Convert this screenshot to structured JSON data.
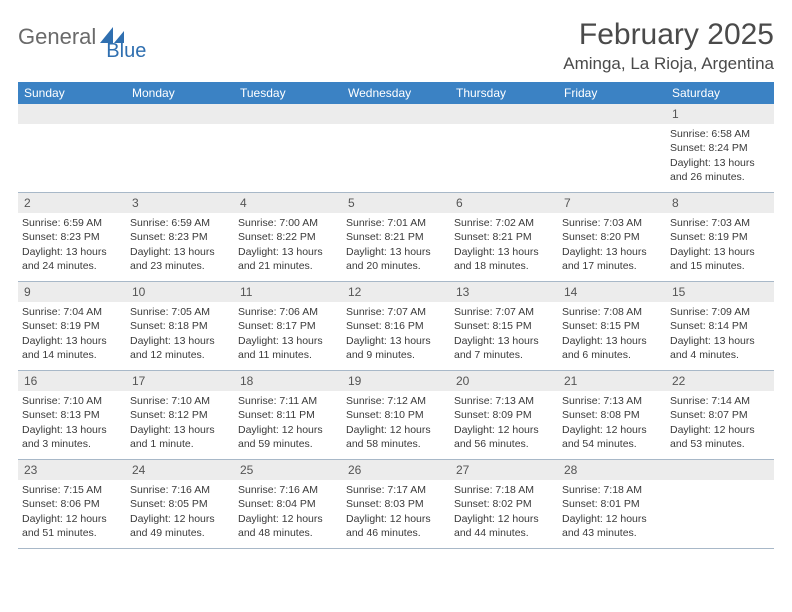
{
  "logo": {
    "part1": "General",
    "part2": "Blue"
  },
  "title": "February 2025",
  "location": "Aminga, La Rioja, Argentina",
  "colors": {
    "header_bg": "#3b82c4",
    "header_text": "#ffffff",
    "daynum_bg": "#ececec",
    "border": "#a8b8c8",
    "text": "#3a3a3a",
    "logo_gray": "#6a6a6a",
    "logo_blue": "#2f6fb0"
  },
  "weekdays": [
    "Sunday",
    "Monday",
    "Tuesday",
    "Wednesday",
    "Thursday",
    "Friday",
    "Saturday"
  ],
  "weeks": [
    [
      {
        "n": "",
        "lines": []
      },
      {
        "n": "",
        "lines": []
      },
      {
        "n": "",
        "lines": []
      },
      {
        "n": "",
        "lines": []
      },
      {
        "n": "",
        "lines": []
      },
      {
        "n": "",
        "lines": []
      },
      {
        "n": "1",
        "lines": [
          "Sunrise: 6:58 AM",
          "Sunset: 8:24 PM",
          "Daylight: 13 hours and 26 minutes."
        ]
      }
    ],
    [
      {
        "n": "2",
        "lines": [
          "Sunrise: 6:59 AM",
          "Sunset: 8:23 PM",
          "Daylight: 13 hours and 24 minutes."
        ]
      },
      {
        "n": "3",
        "lines": [
          "Sunrise: 6:59 AM",
          "Sunset: 8:23 PM",
          "Daylight: 13 hours and 23 minutes."
        ]
      },
      {
        "n": "4",
        "lines": [
          "Sunrise: 7:00 AM",
          "Sunset: 8:22 PM",
          "Daylight: 13 hours and 21 minutes."
        ]
      },
      {
        "n": "5",
        "lines": [
          "Sunrise: 7:01 AM",
          "Sunset: 8:21 PM",
          "Daylight: 13 hours and 20 minutes."
        ]
      },
      {
        "n": "6",
        "lines": [
          "Sunrise: 7:02 AM",
          "Sunset: 8:21 PM",
          "Daylight: 13 hours and 18 minutes."
        ]
      },
      {
        "n": "7",
        "lines": [
          "Sunrise: 7:03 AM",
          "Sunset: 8:20 PM",
          "Daylight: 13 hours and 17 minutes."
        ]
      },
      {
        "n": "8",
        "lines": [
          "Sunrise: 7:03 AM",
          "Sunset: 8:19 PM",
          "Daylight: 13 hours and 15 minutes."
        ]
      }
    ],
    [
      {
        "n": "9",
        "lines": [
          "Sunrise: 7:04 AM",
          "Sunset: 8:19 PM",
          "Daylight: 13 hours and 14 minutes."
        ]
      },
      {
        "n": "10",
        "lines": [
          "Sunrise: 7:05 AM",
          "Sunset: 8:18 PM",
          "Daylight: 13 hours and 12 minutes."
        ]
      },
      {
        "n": "11",
        "lines": [
          "Sunrise: 7:06 AM",
          "Sunset: 8:17 PM",
          "Daylight: 13 hours and 11 minutes."
        ]
      },
      {
        "n": "12",
        "lines": [
          "Sunrise: 7:07 AM",
          "Sunset: 8:16 PM",
          "Daylight: 13 hours and 9 minutes."
        ]
      },
      {
        "n": "13",
        "lines": [
          "Sunrise: 7:07 AM",
          "Sunset: 8:15 PM",
          "Daylight: 13 hours and 7 minutes."
        ]
      },
      {
        "n": "14",
        "lines": [
          "Sunrise: 7:08 AM",
          "Sunset: 8:15 PM",
          "Daylight: 13 hours and 6 minutes."
        ]
      },
      {
        "n": "15",
        "lines": [
          "Sunrise: 7:09 AM",
          "Sunset: 8:14 PM",
          "Daylight: 13 hours and 4 minutes."
        ]
      }
    ],
    [
      {
        "n": "16",
        "lines": [
          "Sunrise: 7:10 AM",
          "Sunset: 8:13 PM",
          "Daylight: 13 hours and 3 minutes."
        ]
      },
      {
        "n": "17",
        "lines": [
          "Sunrise: 7:10 AM",
          "Sunset: 8:12 PM",
          "Daylight: 13 hours and 1 minute."
        ]
      },
      {
        "n": "18",
        "lines": [
          "Sunrise: 7:11 AM",
          "Sunset: 8:11 PM",
          "Daylight: 12 hours and 59 minutes."
        ]
      },
      {
        "n": "19",
        "lines": [
          "Sunrise: 7:12 AM",
          "Sunset: 8:10 PM",
          "Daylight: 12 hours and 58 minutes."
        ]
      },
      {
        "n": "20",
        "lines": [
          "Sunrise: 7:13 AM",
          "Sunset: 8:09 PM",
          "Daylight: 12 hours and 56 minutes."
        ]
      },
      {
        "n": "21",
        "lines": [
          "Sunrise: 7:13 AM",
          "Sunset: 8:08 PM",
          "Daylight: 12 hours and 54 minutes."
        ]
      },
      {
        "n": "22",
        "lines": [
          "Sunrise: 7:14 AM",
          "Sunset: 8:07 PM",
          "Daylight: 12 hours and 53 minutes."
        ]
      }
    ],
    [
      {
        "n": "23",
        "lines": [
          "Sunrise: 7:15 AM",
          "Sunset: 8:06 PM",
          "Daylight: 12 hours and 51 minutes."
        ]
      },
      {
        "n": "24",
        "lines": [
          "Sunrise: 7:16 AM",
          "Sunset: 8:05 PM",
          "Daylight: 12 hours and 49 minutes."
        ]
      },
      {
        "n": "25",
        "lines": [
          "Sunrise: 7:16 AM",
          "Sunset: 8:04 PM",
          "Daylight: 12 hours and 48 minutes."
        ]
      },
      {
        "n": "26",
        "lines": [
          "Sunrise: 7:17 AM",
          "Sunset: 8:03 PM",
          "Daylight: 12 hours and 46 minutes."
        ]
      },
      {
        "n": "27",
        "lines": [
          "Sunrise: 7:18 AM",
          "Sunset: 8:02 PM",
          "Daylight: 12 hours and 44 minutes."
        ]
      },
      {
        "n": "28",
        "lines": [
          "Sunrise: 7:18 AM",
          "Sunset: 8:01 PM",
          "Daylight: 12 hours and 43 minutes."
        ]
      },
      {
        "n": "",
        "lines": []
      }
    ]
  ]
}
